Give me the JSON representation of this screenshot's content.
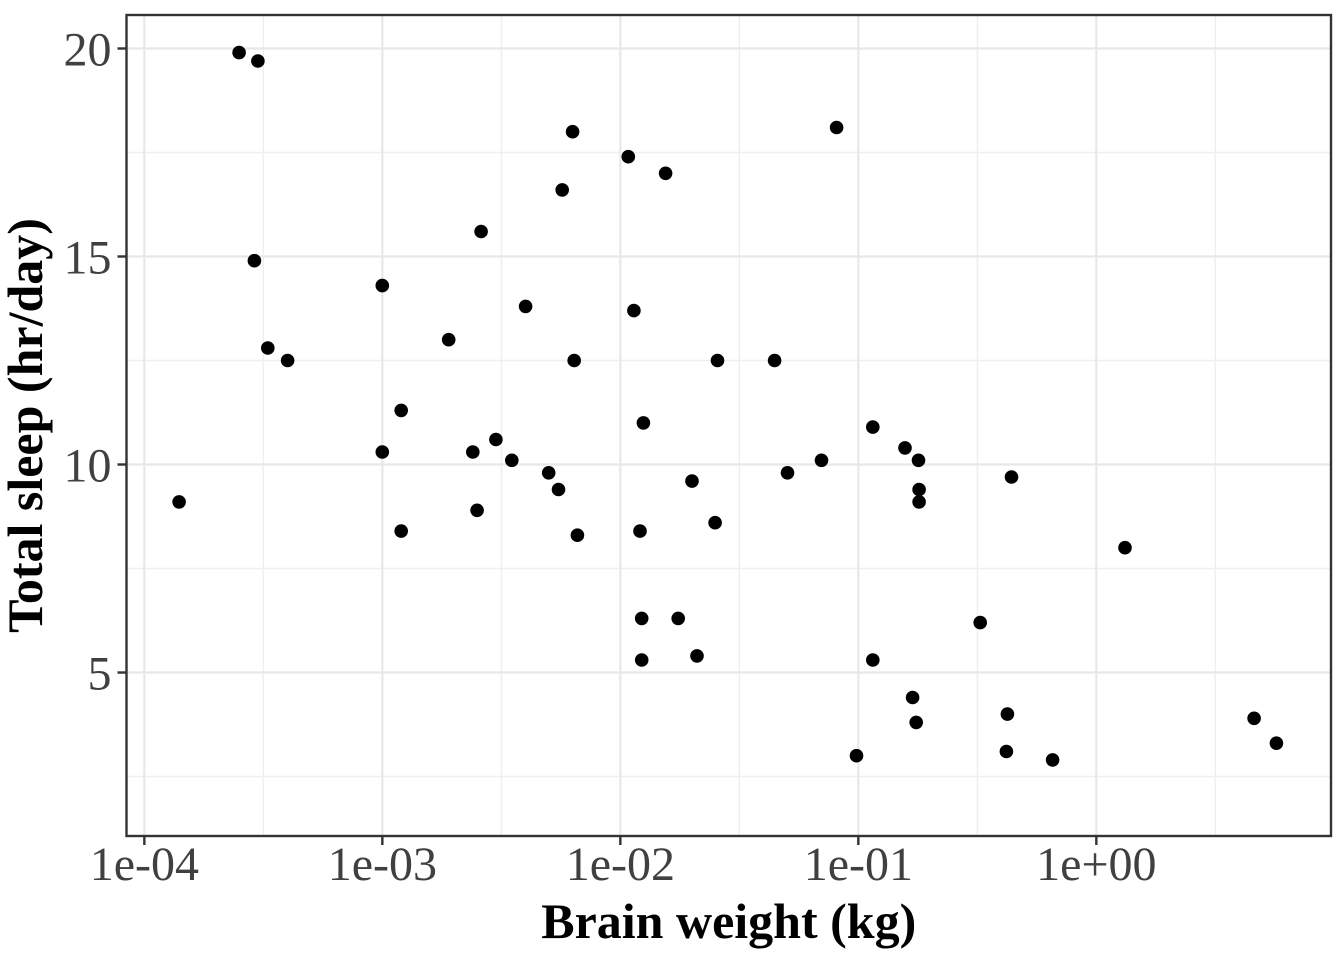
{
  "chart_data": {
    "type": "scatter",
    "title": "",
    "xlabel": "Brain weight (kg)",
    "ylabel": "Total sleep (hr/day)",
    "x_scale": "log10",
    "grid": "major+minor",
    "legend": "none",
    "x_ticks": [
      {
        "label": "1e-04",
        "value": 0.0001
      },
      {
        "label": "1e-03",
        "value": 0.001
      },
      {
        "label": "1e-02",
        "value": 0.01
      },
      {
        "label": "1e-01",
        "value": 0.1
      },
      {
        "label": "1e+00",
        "value": 1
      }
    ],
    "y_ticks": [
      {
        "label": "5",
        "value": 5
      },
      {
        "label": "10",
        "value": 10
      },
      {
        "label": "15",
        "value": 15
      },
      {
        "label": "20",
        "value": 20
      }
    ],
    "x_minor_log": [
      -3.5,
      -2.5,
      -1.5,
      -0.5,
      0.5
    ],
    "y_minor": [
      2.5,
      7.5,
      12.5,
      17.5
    ],
    "xlim_log": [
      -4.075,
      0.986
    ],
    "ylim": [
      1.07,
      20.805
    ],
    "points": [
      [
        0.00014,
        9.1
      ],
      [
        0.00025,
        19.9
      ],
      [
        0.00029,
        14.9
      ],
      [
        0.0003,
        19.7
      ],
      [
        0.00033,
        12.8
      ],
      [
        0.0004,
        12.5
      ],
      [
        0.001,
        14.3
      ],
      [
        0.001,
        10.3
      ],
      [
        0.0012,
        11.3
      ],
      [
        0.0012,
        8.4
      ],
      [
        0.0019,
        13.0
      ],
      [
        0.0024,
        10.3
      ],
      [
        0.0025,
        8.9
      ],
      [
        0.0026,
        15.6
      ],
      [
        0.003,
        10.6
      ],
      [
        0.0035,
        10.1
      ],
      [
        0.004,
        13.8
      ],
      [
        0.005,
        9.8
      ],
      [
        0.0055,
        9.4
      ],
      [
        0.0057,
        16.6
      ],
      [
        0.0063,
        18.0
      ],
      [
        0.0064,
        12.5
      ],
      [
        0.0066,
        8.3
      ],
      [
        0.0108,
        17.4
      ],
      [
        0.0114,
        13.7
      ],
      [
        0.0121,
        8.4
      ],
      [
        0.0123,
        5.3
      ],
      [
        0.0123,
        6.3
      ],
      [
        0.0125,
        11.0
      ],
      [
        0.0155,
        17.0
      ],
      [
        0.0175,
        6.3
      ],
      [
        0.02,
        9.6
      ],
      [
        0.021,
        5.4
      ],
      [
        0.025,
        8.6
      ],
      [
        0.0256,
        12.5
      ],
      [
        0.0445,
        12.5
      ],
      [
        0.0504,
        9.8
      ],
      [
        0.07,
        10.1
      ],
      [
        0.081,
        18.1
      ],
      [
        0.0982,
        3.0
      ],
      [
        0.115,
        5.3
      ],
      [
        0.115,
        10.9
      ],
      [
        0.157,
        10.4
      ],
      [
        0.169,
        4.4
      ],
      [
        0.175,
        3.8
      ],
      [
        0.179,
        10.1
      ],
      [
        0.18,
        9.4
      ],
      [
        0.18,
        9.1
      ],
      [
        0.325,
        6.2
      ],
      [
        0.419,
        3.1
      ],
      [
        0.423,
        4.0
      ],
      [
        0.44,
        9.7
      ],
      [
        0.655,
        2.9
      ],
      [
        1.32,
        8.0
      ],
      [
        4.603,
        3.9
      ],
      [
        5.712,
        3.3
      ]
    ],
    "style": {
      "background": "#ffffff",
      "point_color": "#000000",
      "grid_major_color": "#e8e8e8",
      "grid_minor_color": "#efefef",
      "panel_border_color": "#333333",
      "tick_color": "#333333",
      "tick_label_color": "#404040",
      "axis_title_color": "#000000"
    }
  }
}
